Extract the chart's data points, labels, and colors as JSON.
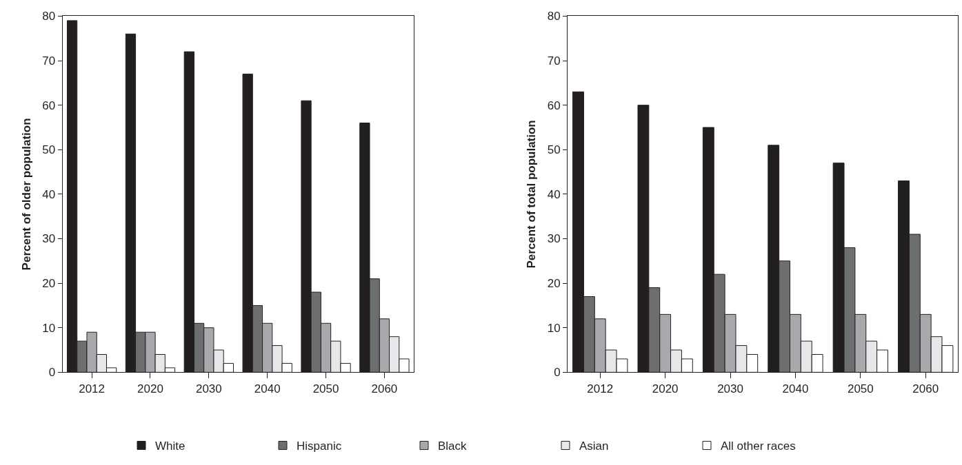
{
  "chart_data": [
    {
      "type": "bar",
      "ylabel": "Percent of older population",
      "categories": [
        "2012",
        "2020",
        "2030",
        "2040",
        "2050",
        "2060"
      ],
      "ylim": [
        0,
        80
      ],
      "yticks": [
        0,
        10,
        20,
        30,
        40,
        50,
        60,
        70,
        80
      ],
      "legend": "bottom",
      "series": [
        {
          "name": "White",
          "color": "#231f20",
          "values": [
            79,
            76,
            72,
            67,
            61,
            56
          ]
        },
        {
          "name": "Hispanic",
          "color": "#6d6e70",
          "values": [
            7,
            9,
            11,
            15,
            18,
            21
          ]
        },
        {
          "name": "Black",
          "color": "#a7a9ac",
          "values": [
            9,
            9,
            10,
            11,
            11,
            12
          ]
        },
        {
          "name": "Asian",
          "color": "#e6e7e8",
          "values": [
            4,
            4,
            5,
            6,
            7,
            8
          ]
        },
        {
          "name": "All other races",
          "color": "#ffffff",
          "values": [
            1,
            1,
            2,
            2,
            2,
            3
          ]
        }
      ]
    },
    {
      "type": "bar",
      "ylabel": "Percent of total population",
      "categories": [
        "2012",
        "2020",
        "2030",
        "2040",
        "2050",
        "2060"
      ],
      "ylim": [
        0,
        80
      ],
      "yticks": [
        0,
        10,
        20,
        30,
        40,
        50,
        60,
        70,
        80
      ],
      "series": [
        {
          "color": "#231f20",
          "values": [
            63,
            60,
            55,
            51,
            47,
            43
          ]
        },
        {
          "color": "#6d6e70",
          "values": [
            17,
            19,
            22,
            25,
            28,
            31
          ]
        },
        {
          "color": "#a7a9ac",
          "values": [
            12,
            13,
            13,
            13,
            13,
            13
          ]
        },
        {
          "color": "#e6e7e8",
          "values": [
            5,
            5,
            6,
            7,
            7,
            8
          ]
        },
        {
          "color": "#ffffff",
          "values": [
            3,
            3,
            4,
            4,
            5,
            6
          ]
        }
      ]
    }
  ]
}
